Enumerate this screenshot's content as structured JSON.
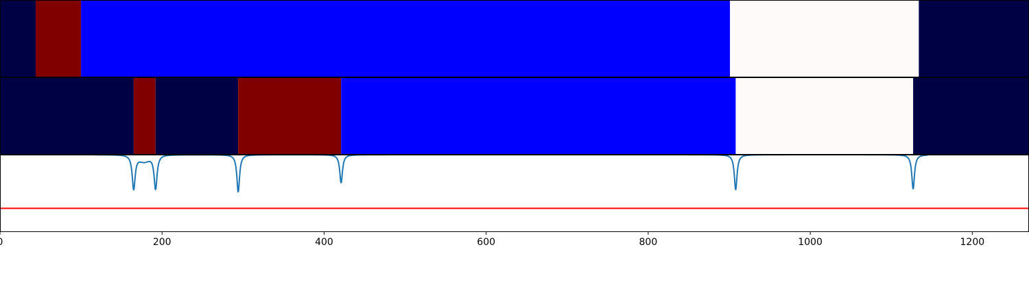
{
  "chart_data": {
    "type": "segmentation-timeline",
    "xlim": [
      0,
      1270
    ],
    "x_ticks": [
      0,
      200,
      400,
      600,
      800,
      1000,
      1200
    ],
    "x_tick_labels": [
      "0",
      "200",
      "400",
      "600",
      "800",
      "1000",
      "1200"
    ],
    "colors": {
      "class_0": "#000045",
      "class_1": "#800000",
      "class_2": "#0000ff",
      "class_3": "#fffafa",
      "curve": "#1f77b4",
      "threshold": "#ff0000"
    },
    "rows": [
      {
        "segments": [
          {
            "start": 0,
            "end": 44,
            "cls": "class_0"
          },
          {
            "start": 44,
            "end": 100,
            "cls": "class_1"
          },
          {
            "start": 100,
            "end": 901,
            "cls": "class_2"
          },
          {
            "start": 901,
            "end": 1134,
            "cls": "class_3"
          },
          {
            "start": 1134,
            "end": 1270,
            "cls": "class_0"
          }
        ]
      },
      {
        "segments": [
          {
            "start": 0,
            "end": 165,
            "cls": "class_0"
          },
          {
            "start": 165,
            "end": 192,
            "cls": "class_1"
          },
          {
            "start": 192,
            "end": 294,
            "cls": "class_0"
          },
          {
            "start": 294,
            "end": 421,
            "cls": "class_1"
          },
          {
            "start": 421,
            "end": 908,
            "cls": "class_2"
          },
          {
            "start": 908,
            "end": 1127,
            "cls": "class_3"
          },
          {
            "start": 1127,
            "end": 1270,
            "cls": "class_0"
          }
        ]
      }
    ],
    "curve_panel": {
      "ylim": [
        0,
        1
      ],
      "threshold": 0.3,
      "baseline": 1.0,
      "flat_spans": [
        [
          115,
          1350
        ]
      ],
      "dips": [
        {
          "x": 165,
          "depth": 0.45,
          "width": 2.2
        },
        {
          "x": 192,
          "depth": 0.45,
          "width": 2.2
        },
        {
          "x": 294,
          "depth": 0.49,
          "width": 2.0
        },
        {
          "x": 421,
          "depth": 0.37,
          "width": 2.0
        },
        {
          "x": 908,
          "depth": 0.46,
          "width": 2.0
        },
        {
          "x": 1127,
          "depth": 0.45,
          "width": 2.0
        }
      ],
      "shoulders": [
        {
          "x": 178,
          "depth": 0.08,
          "width": 9
        }
      ],
      "visible_from": 115,
      "visible_to": 1145
    }
  }
}
